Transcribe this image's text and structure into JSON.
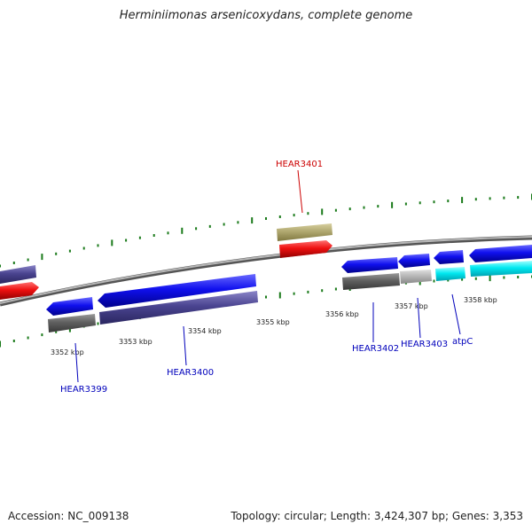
{
  "title": "Herminiimonas arsenicoxydans, complete genome",
  "accession_text": "Accession: NC_009138",
  "summary_text": "Topology: circular; Length: 3,424,307 bp; Genes: 3,353",
  "colors": {
    "backbone": "#8a8a8a",
    "tick": "#1a7a1a",
    "label_blue": "#0000bb",
    "label_red": "#cc0000"
  },
  "kbp_ticks": [
    "3352 kbp",
    "3353 kbp",
    "3354 kbp",
    "3355 kbp",
    "3356 kbp",
    "3357 kbp",
    "3358 kbp"
  ],
  "gene_labels": [
    "HEAR3399",
    "HEAR3400",
    "HEAR3401",
    "HEAR3402",
    "HEAR3403",
    "atpC"
  ],
  "feature_colors": {
    "blue": "#1010ee",
    "slate": "#4a4490",
    "red": "#ee1010",
    "olive": "#b0a870",
    "gray": "#606060",
    "lightgray": "#b8b8b8",
    "cyan": "#00e8f0"
  }
}
